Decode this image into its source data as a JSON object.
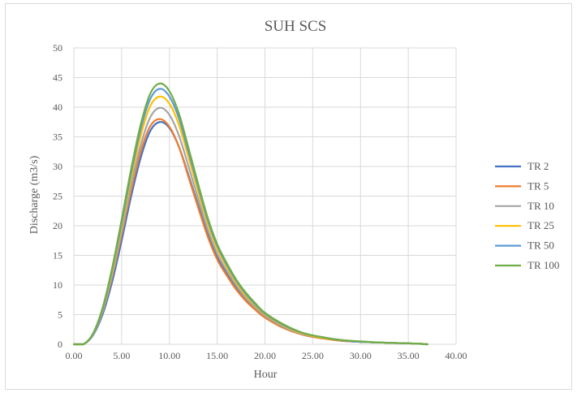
{
  "chart_data": {
    "type": "line",
    "title": "SUH SCS",
    "xlabel": "Hour",
    "ylabel": "Discharge (m3/s)",
    "xlim": [
      0,
      40
    ],
    "ylim": [
      0,
      50
    ],
    "x_ticks": [
      "0.00",
      "5.00",
      "10.00",
      "15.00",
      "20.00",
      "25.00",
      "30.00",
      "35.00",
      "40.00"
    ],
    "y_ticks": [
      "0",
      "5",
      "10",
      "15",
      "20",
      "25",
      "30",
      "35",
      "40",
      "45",
      "50"
    ],
    "grid": true,
    "legend_position": "right",
    "x": [
      0,
      1,
      2,
      3,
      4,
      5,
      6,
      7,
      8,
      9,
      10,
      11,
      12,
      13,
      14,
      15,
      16,
      17,
      18,
      19,
      20,
      22,
      24,
      26,
      28,
      30,
      32,
      34,
      36,
      37
    ],
    "series": [
      {
        "name": "TR 2",
        "color": "#4472c4",
        "values": [
          0,
          0,
          1.5,
          5,
          10.5,
          17.5,
          25,
          31.5,
          36,
          37.5,
          36.5,
          33.3,
          28.5,
          23.5,
          18.6,
          14.7,
          11.9,
          9.5,
          7.5,
          5.9,
          4.6,
          2.8,
          1.6,
          1.0,
          0.6,
          0.4,
          0.3,
          0.2,
          0.1,
          0
        ]
      },
      {
        "name": "TR 5",
        "color": "#ed7d31",
        "values": [
          0,
          0,
          1.6,
          5.4,
          11.3,
          18.5,
          26,
          32.5,
          36.8,
          38,
          36.7,
          33.3,
          28.2,
          23.1,
          18.2,
          14.3,
          11.6,
          9.2,
          7.3,
          5.8,
          4.5,
          2.7,
          1.6,
          1.0,
          0.6,
          0.4,
          0.3,
          0.2,
          0.1,
          0
        ]
      },
      {
        "name": "TR 10",
        "color": "#a5a5a5",
        "values": [
          0,
          0,
          1.6,
          5.5,
          11.6,
          19,
          26.8,
          33.6,
          38.3,
          39.9,
          38.7,
          35.2,
          30,
          24.6,
          19.4,
          15.3,
          12.4,
          9.9,
          7.8,
          6.2,
          4.8,
          2.9,
          1.7,
          1.1,
          0.7,
          0.4,
          0.3,
          0.2,
          0.1,
          0
        ]
      },
      {
        "name": "TR 25",
        "color": "#ffc000",
        "values": [
          0,
          0,
          1.7,
          5.8,
          12.1,
          19.8,
          28,
          35.2,
          40.2,
          41.8,
          40.6,
          37,
          31.5,
          25.8,
          20.4,
          16.1,
          13,
          10.4,
          8.2,
          6.5,
          5.1,
          3.1,
          1.8,
          1.1,
          0.7,
          0.4,
          0.3,
          0.2,
          0.1,
          0
        ]
      },
      {
        "name": "TR 50",
        "color": "#5b9bd5",
        "values": [
          0,
          0,
          1.7,
          5.9,
          12.5,
          20.4,
          28.9,
          36.3,
          41.4,
          43.1,
          41.8,
          38.1,
          32.4,
          26.6,
          21,
          16.6,
          13.4,
          10.7,
          8.5,
          6.7,
          5.2,
          3.2,
          1.9,
          1.2,
          0.7,
          0.4,
          0.3,
          0.2,
          0.1,
          0
        ]
      },
      {
        "name": "TR 100",
        "color": "#70ad47",
        "values": [
          0,
          0,
          1.8,
          6.1,
          12.8,
          21,
          29.6,
          37.1,
          42.3,
          44,
          42.7,
          38.9,
          33.1,
          27.1,
          21.4,
          16.9,
          13.7,
          10.9,
          8.7,
          6.9,
          5.3,
          3.3,
          1.9,
          1.2,
          0.7,
          0.5,
          0.3,
          0.2,
          0.1,
          0
        ]
      }
    ]
  }
}
